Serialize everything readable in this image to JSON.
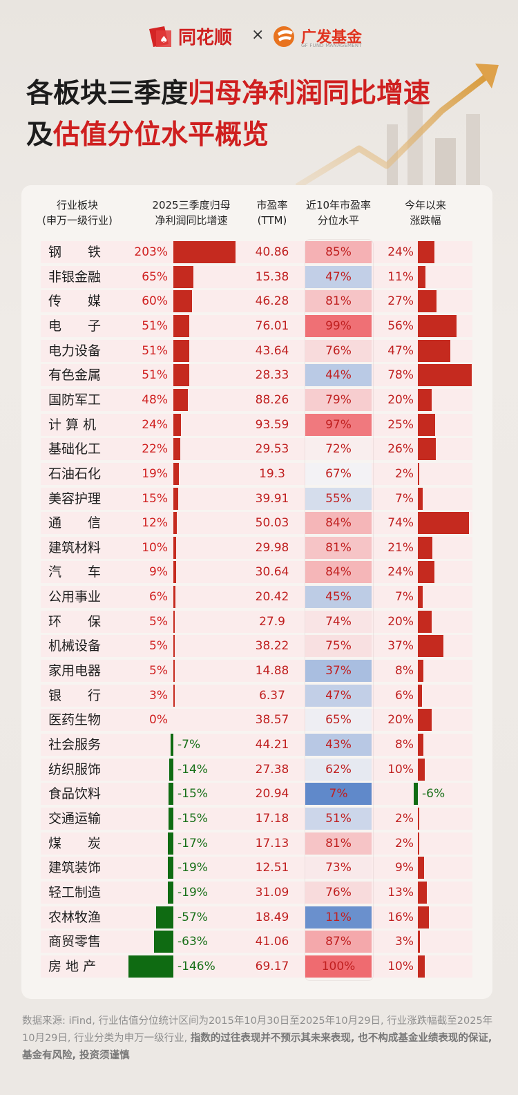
{
  "brand": {
    "left": "同花顺",
    "times": "×",
    "right": "广发基金",
    "right_sub": "GF FUND MANAGEMENT"
  },
  "title": {
    "line1_a": "各板块三季度",
    "line1_b": "归母净利润同比增速",
    "line2_a": "及",
    "line2_b": "估值分位水平概览"
  },
  "headers": {
    "industry": [
      "行业板块",
      "(申万一级行业)"
    ],
    "growth": [
      "2025三季度归母",
      "净利润同比增速"
    ],
    "pe": [
      "市盈率",
      "(TTM)"
    ],
    "pctile": [
      "近10年市盈率",
      "分位水平"
    ],
    "ytd": [
      "今年以来",
      "涨跌幅"
    ]
  },
  "colors": {
    "up_bar": "#c52a1f",
    "down_bar": "#0f6b12",
    "row_bg": "#fbecec",
    "low_pct": "#5b86c9",
    "high_pct": "#ef6b70"
  },
  "chart_data": {
    "type": "table",
    "columns": [
      "行业板块",
      "2025三季度归母净利润同比增速",
      "市盈率(TTM)",
      "近10年市盈率分位水平",
      "今年以来涨跌幅"
    ],
    "rows": [
      {
        "name": "钢　　铁",
        "growth": 203,
        "growth_label": "203%",
        "pe": "40.86",
        "pctile": 85,
        "pctile_label": "85%",
        "ytd": 24,
        "ytd_label": "24%"
      },
      {
        "name": "非银金融",
        "growth": 65,
        "growth_label": "65%",
        "pe": "15.38",
        "pctile": 47,
        "pctile_label": "47%",
        "ytd": 11,
        "ytd_label": "11%"
      },
      {
        "name": "传　　媒",
        "growth": 60,
        "growth_label": "60%",
        "pe": "46.28",
        "pctile": 81,
        "pctile_label": "81%",
        "ytd": 27,
        "ytd_label": "27%"
      },
      {
        "name": "电　　子",
        "growth": 51,
        "growth_label": "51%",
        "pe": "76.01",
        "pctile": 99,
        "pctile_label": "99%",
        "ytd": 56,
        "ytd_label": "56%"
      },
      {
        "name": "电力设备",
        "growth": 51,
        "growth_label": "51%",
        "pe": "43.64",
        "pctile": 76,
        "pctile_label": "76%",
        "ytd": 47,
        "ytd_label": "47%"
      },
      {
        "name": "有色金属",
        "growth": 51,
        "growth_label": "51%",
        "pe": "28.33",
        "pctile": 44,
        "pctile_label": "44%",
        "ytd": 78,
        "ytd_label": "78%"
      },
      {
        "name": "国防军工",
        "growth": 48,
        "growth_label": "48%",
        "pe": "88.26",
        "pctile": 79,
        "pctile_label": "79%",
        "ytd": 20,
        "ytd_label": "20%"
      },
      {
        "name": "计 算 机",
        "growth": 24,
        "growth_label": "24%",
        "pe": "93.59",
        "pctile": 97,
        "pctile_label": "97%",
        "ytd": 25,
        "ytd_label": "25%"
      },
      {
        "name": "基础化工",
        "growth": 22,
        "growth_label": "22%",
        "pe": "29.53",
        "pctile": 72,
        "pctile_label": "72%",
        "ytd": 26,
        "ytd_label": "26%"
      },
      {
        "name": "石油石化",
        "growth": 19,
        "growth_label": "19%",
        "pe": "19.3",
        "pctile": 67,
        "pctile_label": "67%",
        "ytd": 2,
        "ytd_label": "2%"
      },
      {
        "name": "美容护理",
        "growth": 15,
        "growth_label": "15%",
        "pe": "39.91",
        "pctile": 55,
        "pctile_label": "55%",
        "ytd": 7,
        "ytd_label": "7%"
      },
      {
        "name": "通　　信",
        "growth": 12,
        "growth_label": "12%",
        "pe": "50.03",
        "pctile": 84,
        "pctile_label": "84%",
        "ytd": 74,
        "ytd_label": "74%"
      },
      {
        "name": "建筑材料",
        "growth": 10,
        "growth_label": "10%",
        "pe": "29.98",
        "pctile": 81,
        "pctile_label": "81%",
        "ytd": 21,
        "ytd_label": "21%"
      },
      {
        "name": "汽　　车",
        "growth": 9,
        "growth_label": "9%",
        "pe": "30.64",
        "pctile": 84,
        "pctile_label": "84%",
        "ytd": 24,
        "ytd_label": "24%"
      },
      {
        "name": "公用事业",
        "growth": 6,
        "growth_label": "6%",
        "pe": "20.42",
        "pctile": 45,
        "pctile_label": "45%",
        "ytd": 7,
        "ytd_label": "7%"
      },
      {
        "name": "环　　保",
        "growth": 5,
        "growth_label": "5%",
        "pe": "27.9",
        "pctile": 74,
        "pctile_label": "74%",
        "ytd": 20,
        "ytd_label": "20%"
      },
      {
        "name": "机械设备",
        "growth": 5,
        "growth_label": "5%",
        "pe": "38.22",
        "pctile": 75,
        "pctile_label": "75%",
        "ytd": 37,
        "ytd_label": "37%"
      },
      {
        "name": "家用电器",
        "growth": 5,
        "growth_label": "5%",
        "pe": "14.88",
        "pctile": 37,
        "pctile_label": "37%",
        "ytd": 8,
        "ytd_label": "8%"
      },
      {
        "name": "银　　行",
        "growth": 3,
        "growth_label": "3%",
        "pe": "6.37",
        "pctile": 47,
        "pctile_label": "47%",
        "ytd": 6,
        "ytd_label": "6%"
      },
      {
        "name": "医药生物",
        "growth": 0,
        "growth_label": "0%",
        "pe": "38.57",
        "pctile": 65,
        "pctile_label": "65%",
        "ytd": 20,
        "ytd_label": "20%"
      },
      {
        "name": "社会服务",
        "growth": -7,
        "growth_label": "-7%",
        "pe": "44.21",
        "pctile": 43,
        "pctile_label": "43%",
        "ytd": 8,
        "ytd_label": "8%"
      },
      {
        "name": "纺织服饰",
        "growth": -14,
        "growth_label": "-14%",
        "pe": "27.38",
        "pctile": 62,
        "pctile_label": "62%",
        "ytd": 10,
        "ytd_label": "10%"
      },
      {
        "name": "食品饮料",
        "growth": -15,
        "growth_label": "-15%",
        "pe": "20.94",
        "pctile": 7,
        "pctile_label": "7%",
        "ytd": -6,
        "ytd_label": "-6%"
      },
      {
        "name": "交通运输",
        "growth": -15,
        "growth_label": "-15%",
        "pe": "17.18",
        "pctile": 51,
        "pctile_label": "51%",
        "ytd": 2,
        "ytd_label": "2%"
      },
      {
        "name": "煤　　炭",
        "growth": -17,
        "growth_label": "-17%",
        "pe": "17.13",
        "pctile": 81,
        "pctile_label": "81%",
        "ytd": 2,
        "ytd_label": "2%"
      },
      {
        "name": "建筑装饰",
        "growth": -19,
        "growth_label": "-19%",
        "pe": "12.51",
        "pctile": 73,
        "pctile_label": "73%",
        "ytd": 9,
        "ytd_label": "9%"
      },
      {
        "name": "轻工制造",
        "growth": -19,
        "growth_label": "-19%",
        "pe": "31.09",
        "pctile": 76,
        "pctile_label": "76%",
        "ytd": 13,
        "ytd_label": "13%"
      },
      {
        "name": "农林牧渔",
        "growth": -57,
        "growth_label": "-57%",
        "pe": "18.49",
        "pctile": 11,
        "pctile_label": "11%",
        "ytd": 16,
        "ytd_label": "16%"
      },
      {
        "name": "商贸零售",
        "growth": -63,
        "growth_label": "-63%",
        "pe": "41.06",
        "pctile": 87,
        "pctile_label": "87%",
        "ytd": 3,
        "ytd_label": "3%"
      },
      {
        "name": "房 地 产",
        "growth": -146,
        "growth_label": "-146%",
        "pe": "69.17",
        "pctile": 100,
        "pctile_label": "100%",
        "ytd": 10,
        "ytd_label": "10%"
      }
    ]
  },
  "footer": {
    "normal": "数据来源: iFind, 行业估值分位统计区间为2015年10月30日至2025年10月29日, 行业涨跌幅截至2025年10月29日, 行业分类为申万一级行业, ",
    "bold": "指数的过往表现并不预示其未来表现, 也不构成基金业绩表现的保证, 基金有风险, 投资须谨慎"
  }
}
